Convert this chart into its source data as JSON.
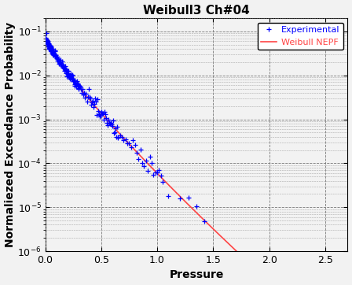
{
  "title": "Weibull3 Ch#04",
  "xlabel": "Pressure",
  "ylabel": "Normaliezed Exceedance Probability",
  "xlim": [
    0,
    2.7
  ],
  "ylim_log": [
    1e-06,
    0.2
  ],
  "lam": 0.1,
  "k": 0.85,
  "amp": 0.07,
  "legend_exp_label": "Experimental",
  "legend_weibull_label": "Weibull NEPF",
  "exp_color": "#0000FF",
  "weibull_color": "#FF4444",
  "background_color": "#F2F2F2",
  "grid_color": "#888888",
  "title_fontsize": 11,
  "label_fontsize": 10,
  "tick_fontsize": 9
}
